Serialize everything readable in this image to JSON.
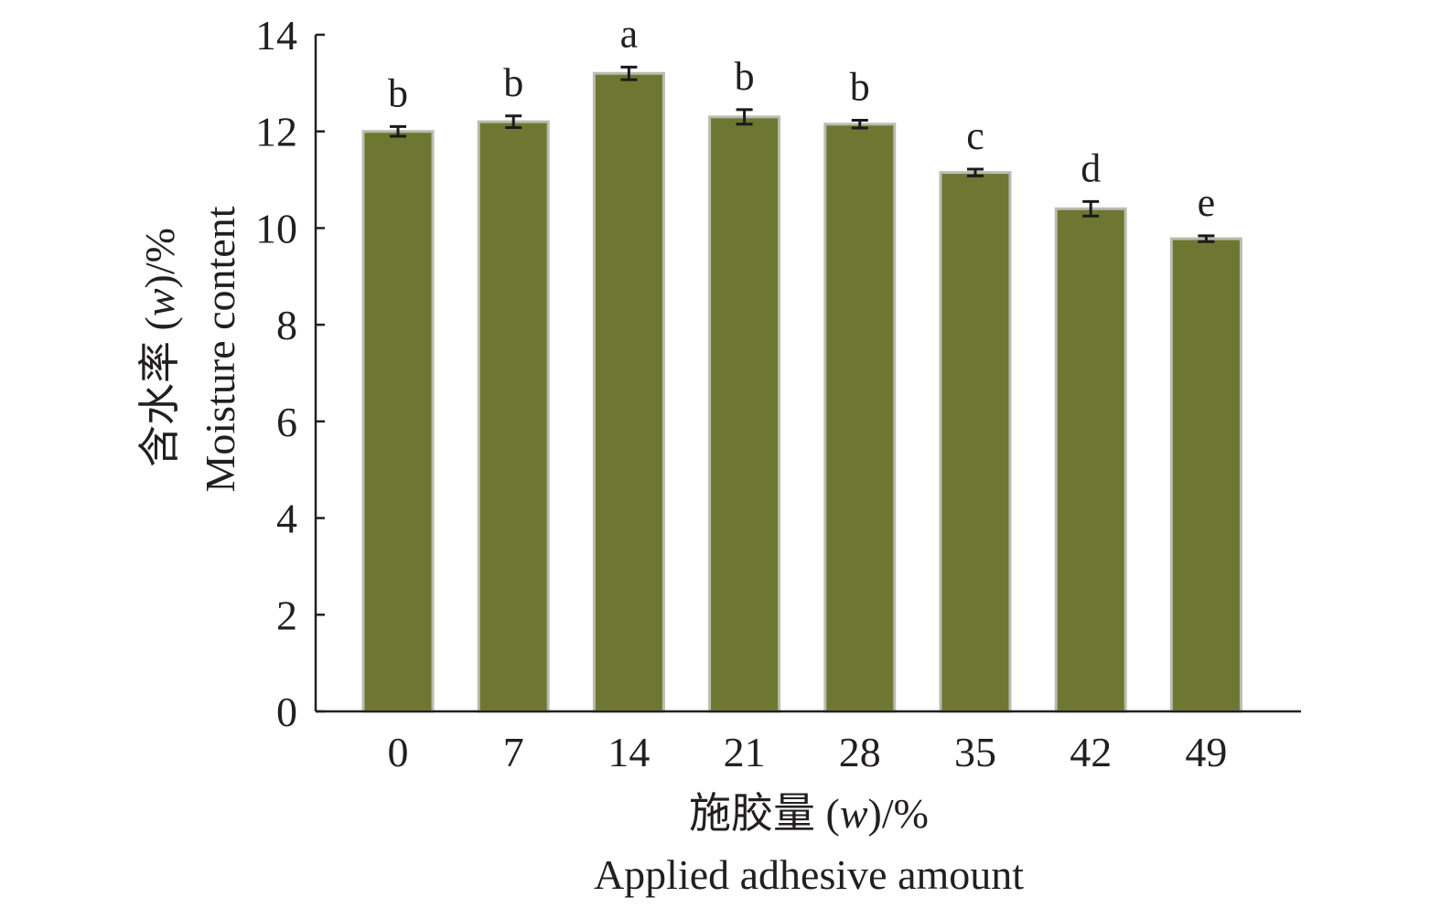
{
  "chart_data": {
    "type": "bar",
    "categories": [
      "0",
      "7",
      "14",
      "21",
      "28",
      "35",
      "42",
      "49"
    ],
    "values": [
      12.0,
      12.2,
      13.2,
      12.3,
      12.15,
      11.15,
      10.4,
      9.78
    ],
    "errors": [
      0.1,
      0.12,
      0.13,
      0.15,
      0.08,
      0.07,
      0.15,
      0.06
    ],
    "significance": [
      "b",
      "b",
      "a",
      "b",
      "b",
      "c",
      "d",
      "e"
    ],
    "xlabel": {
      "zh_prefix": "施胶量 (",
      "var": "w",
      "suffix": ")/%",
      "en": "Applied adhesive amount"
    },
    "ylabel": {
      "zh_prefix": "含水率 (",
      "var": "w",
      "suffix": ")/%",
      "en": "Moisture content"
    },
    "ylim": [
      0,
      14
    ],
    "yticks": [
      0,
      2,
      4,
      6,
      8,
      10,
      12,
      14
    ],
    "grid": false,
    "legend": "none",
    "bar_color": "#6e7731",
    "bar_edge_color": "#b9bcb0"
  }
}
